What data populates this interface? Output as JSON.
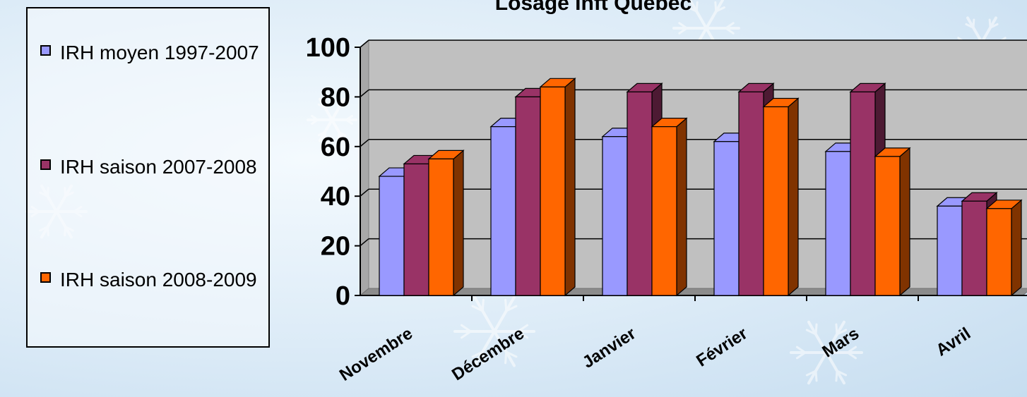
{
  "chart_data": {
    "type": "bar",
    "title": "Losage Inft Québec",
    "categories": [
      "Novembre",
      "Décembre",
      "Janvier",
      "Février",
      "Mars",
      "Avril"
    ],
    "series": [
      {
        "name": "IRH moyen 1997-2007",
        "values": [
          48,
          68,
          64,
          62,
          58,
          36
        ],
        "color": "#9999ff"
      },
      {
        "name": "IRH saison 2007-2008",
        "values": [
          53,
          80,
          82,
          82,
          82,
          38
        ],
        "color": "#993366"
      },
      {
        "name": "IRH saison 2008-2009",
        "values": [
          55,
          84,
          68,
          76,
          56,
          35
        ],
        "color": "#ff6600"
      }
    ],
    "y_ticks": [
      "0",
      "20",
      "40",
      "60",
      "80",
      "100"
    ],
    "ylim": [
      0,
      100
    ],
    "grid": true,
    "legend_position": "left",
    "wall_color": "#c0c0c0",
    "style": "3d-column"
  }
}
